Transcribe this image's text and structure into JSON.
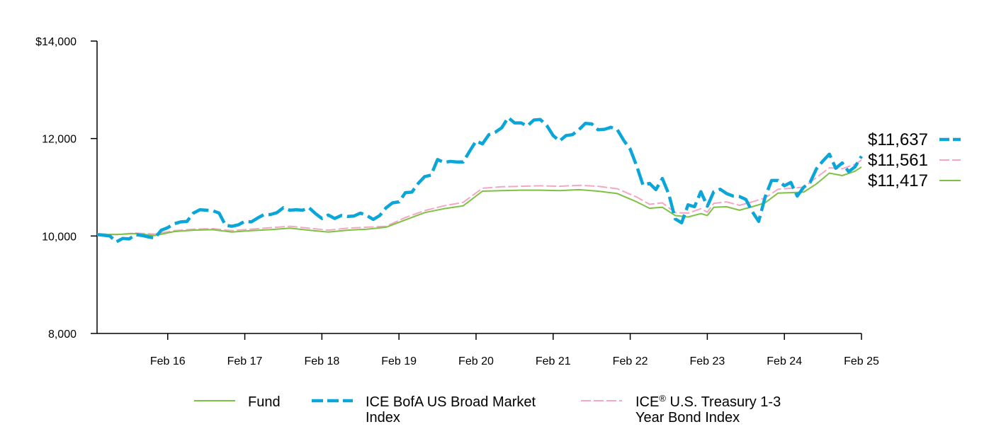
{
  "chart_data": {
    "type": "line",
    "title": "",
    "xlabel": "",
    "ylabel": "",
    "ylim": [
      8000,
      14000
    ],
    "y_ticks": [
      {
        "value": 8000,
        "label": "8,000"
      },
      {
        "value": 10000,
        "label": "10,000"
      },
      {
        "value": 12000,
        "label": "12,000"
      },
      {
        "value": 14000,
        "label": "$14,000"
      }
    ],
    "x_ticks": [
      {
        "value": 11,
        "label": "Feb 16"
      },
      {
        "value": 23,
        "label": "Feb 17"
      },
      {
        "value": 35,
        "label": "Feb 18"
      },
      {
        "value": 47,
        "label": "Feb 19"
      },
      {
        "value": 59,
        "label": "Feb 20"
      },
      {
        "value": 71,
        "label": "Feb 21"
      },
      {
        "value": 83,
        "label": "Feb 22"
      },
      {
        "value": 95,
        "label": "Feb 23"
      },
      {
        "value": 107,
        "label": "Feb 24"
      },
      {
        "value": 119,
        "label": "Feb 25"
      }
    ],
    "x_range": [
      0,
      119
    ],
    "grid": false,
    "legend_position": "bottom",
    "series": [
      {
        "name": "ICE BofA US Broad Market Index",
        "color": "#0aa5d9",
        "style": "dashed-thick",
        "end_label": "$11,637",
        "end_value": 11637,
        "points": [
          [
            0,
            10030
          ],
          [
            2,
            10000
          ],
          [
            3,
            9880
          ],
          [
            4,
            9950
          ],
          [
            5,
            9940
          ],
          [
            6,
            10030
          ],
          [
            7,
            10010
          ],
          [
            8,
            9980
          ],
          [
            9,
            9960
          ],
          [
            10,
            10120
          ],
          [
            11,
            10170
          ],
          [
            12,
            10250
          ],
          [
            13,
            10290
          ],
          [
            14,
            10300
          ],
          [
            15,
            10470
          ],
          [
            16,
            10540
          ],
          [
            17,
            10530
          ],
          [
            18,
            10520
          ],
          [
            19,
            10470
          ],
          [
            20,
            10220
          ],
          [
            21,
            10200
          ],
          [
            22,
            10230
          ],
          [
            23,
            10300
          ],
          [
            24,
            10290
          ],
          [
            25,
            10370
          ],
          [
            26,
            10440
          ],
          [
            27,
            10440
          ],
          [
            28,
            10480
          ],
          [
            29,
            10580
          ],
          [
            30,
            10530
          ],
          [
            31,
            10540
          ],
          [
            32,
            10530
          ],
          [
            33,
            10580
          ],
          [
            34,
            10460
          ],
          [
            35,
            10360
          ],
          [
            36,
            10430
          ],
          [
            37,
            10360
          ],
          [
            38,
            10420
          ],
          [
            39,
            10400
          ],
          [
            40,
            10410
          ],
          [
            41,
            10470
          ],
          [
            42,
            10420
          ],
          [
            43,
            10340
          ],
          [
            44,
            10420
          ],
          [
            45,
            10580
          ],
          [
            46,
            10680
          ],
          [
            47,
            10700
          ],
          [
            48,
            10890
          ],
          [
            49,
            10900
          ],
          [
            50,
            11080
          ],
          [
            51,
            11220
          ],
          [
            52,
            11250
          ],
          [
            53,
            11570
          ],
          [
            54,
            11510
          ],
          [
            55,
            11530
          ],
          [
            56,
            11520
          ],
          [
            57,
            11520
          ],
          [
            58,
            11740
          ],
          [
            59,
            11950
          ],
          [
            60,
            11890
          ],
          [
            61,
            12080
          ],
          [
            62,
            12130
          ],
          [
            63,
            12220
          ],
          [
            64,
            12430
          ],
          [
            65,
            12320
          ],
          [
            66,
            12320
          ],
          [
            67,
            12260
          ],
          [
            68,
            12380
          ],
          [
            69,
            12390
          ],
          [
            70,
            12270
          ],
          [
            71,
            12060
          ],
          [
            72,
            11950
          ],
          [
            73,
            12060
          ],
          [
            74,
            12080
          ],
          [
            75,
            12180
          ],
          [
            76,
            12310
          ],
          [
            77,
            12300
          ],
          [
            78,
            12180
          ],
          [
            79,
            12190
          ],
          [
            80,
            12230
          ],
          [
            81,
            12180
          ],
          [
            82,
            11960
          ],
          [
            83,
            11780
          ],
          [
            84,
            11440
          ],
          [
            85,
            11040
          ],
          [
            86,
            11080
          ],
          [
            87,
            10950
          ],
          [
            88,
            11180
          ],
          [
            89,
            10860
          ],
          [
            90,
            10350
          ],
          [
            91,
            10270
          ],
          [
            92,
            10640
          ],
          [
            93,
            10600
          ],
          [
            94,
            10910
          ],
          [
            95,
            10610
          ],
          [
            96,
            10910
          ],
          [
            97,
            10960
          ],
          [
            98,
            10870
          ],
          [
            99,
            10820
          ],
          [
            100,
            10810
          ],
          [
            101,
            10750
          ],
          [
            102,
            10500
          ],
          [
            103,
            10300
          ],
          [
            104,
            10800
          ],
          [
            105,
            11140
          ],
          [
            106,
            11140
          ],
          [
            107,
            11030
          ],
          [
            108,
            11100
          ],
          [
            109,
            10820
          ],
          [
            110,
            11000
          ],
          [
            111,
            11100
          ],
          [
            112,
            11380
          ],
          [
            113,
            11540
          ],
          [
            114,
            11680
          ],
          [
            115,
            11390
          ],
          [
            116,
            11500
          ],
          [
            117,
            11320
          ],
          [
            118,
            11420
          ],
          [
            119,
            11637
          ]
        ]
      },
      {
        "name": "ICE® U.S. Treasury 1-3 Year Bond Index",
        "color": "#f4a7c4",
        "style": "dashed-thin",
        "end_label": "$11,561",
        "end_value": 11561,
        "points": [
          [
            0,
            10050
          ],
          [
            3,
            10030
          ],
          [
            6,
            10060
          ],
          [
            9,
            10040
          ],
          [
            12,
            10110
          ],
          [
            15,
            10140
          ],
          [
            18,
            10150
          ],
          [
            21,
            10110
          ],
          [
            24,
            10140
          ],
          [
            27,
            10170
          ],
          [
            30,
            10200
          ],
          [
            33,
            10160
          ],
          [
            36,
            10120
          ],
          [
            39,
            10160
          ],
          [
            42,
            10180
          ],
          [
            45,
            10200
          ],
          [
            48,
            10380
          ],
          [
            51,
            10520
          ],
          [
            54,
            10620
          ],
          [
            57,
            10690
          ],
          [
            60,
            10980
          ],
          [
            63,
            11010
          ],
          [
            66,
            11020
          ],
          [
            69,
            11030
          ],
          [
            72,
            11020
          ],
          [
            75,
            11040
          ],
          [
            78,
            11020
          ],
          [
            81,
            10970
          ],
          [
            84,
            10800
          ],
          [
            86,
            10650
          ],
          [
            88,
            10680
          ],
          [
            90,
            10480
          ],
          [
            92,
            10470
          ],
          [
            94,
            10560
          ],
          [
            95,
            10490
          ],
          [
            96,
            10670
          ],
          [
            98,
            10700
          ],
          [
            100,
            10630
          ],
          [
            102,
            10700
          ],
          [
            104,
            10780
          ],
          [
            106,
            10960
          ],
          [
            108,
            10980
          ],
          [
            110,
            11000
          ],
          [
            112,
            11200
          ],
          [
            114,
            11400
          ],
          [
            116,
            11380
          ],
          [
            118,
            11470
          ],
          [
            119,
            11561
          ]
        ]
      },
      {
        "name": "Fund",
        "color": "#7dc242",
        "style": "solid",
        "end_label": "$11,417",
        "end_value": 11417,
        "points": [
          [
            0,
            10030
          ],
          [
            3,
            10030
          ],
          [
            6,
            10050
          ],
          [
            9,
            10010
          ],
          [
            12,
            10090
          ],
          [
            15,
            10120
          ],
          [
            18,
            10130
          ],
          [
            21,
            10080
          ],
          [
            24,
            10110
          ],
          [
            27,
            10130
          ],
          [
            30,
            10160
          ],
          [
            33,
            10120
          ],
          [
            36,
            10080
          ],
          [
            39,
            10120
          ],
          [
            42,
            10140
          ],
          [
            45,
            10180
          ],
          [
            48,
            10330
          ],
          [
            51,
            10480
          ],
          [
            54,
            10560
          ],
          [
            57,
            10620
          ],
          [
            60,
            10920
          ],
          [
            63,
            10930
          ],
          [
            66,
            10940
          ],
          [
            69,
            10940
          ],
          [
            72,
            10930
          ],
          [
            75,
            10950
          ],
          [
            78,
            10920
          ],
          [
            81,
            10870
          ],
          [
            84,
            10700
          ],
          [
            86,
            10570
          ],
          [
            88,
            10590
          ],
          [
            90,
            10420
          ],
          [
            92,
            10390
          ],
          [
            94,
            10460
          ],
          [
            95,
            10420
          ],
          [
            96,
            10590
          ],
          [
            98,
            10600
          ],
          [
            100,
            10530
          ],
          [
            102,
            10600
          ],
          [
            104,
            10680
          ],
          [
            106,
            10880
          ],
          [
            108,
            10890
          ],
          [
            110,
            10900
          ],
          [
            112,
            11070
          ],
          [
            114,
            11290
          ],
          [
            116,
            11240
          ],
          [
            118,
            11330
          ],
          [
            119,
            11417
          ]
        ]
      }
    ],
    "legend": [
      {
        "series_index": 2,
        "label_lines": [
          "Fund"
        ]
      },
      {
        "series_index": 0,
        "label_lines": [
          "ICE BofA US Broad Market",
          "Index"
        ]
      },
      {
        "series_index": 1,
        "label_lines": [
          "ICE® U.S. Treasury 1-3",
          "Year Bond Index"
        ]
      }
    ]
  }
}
